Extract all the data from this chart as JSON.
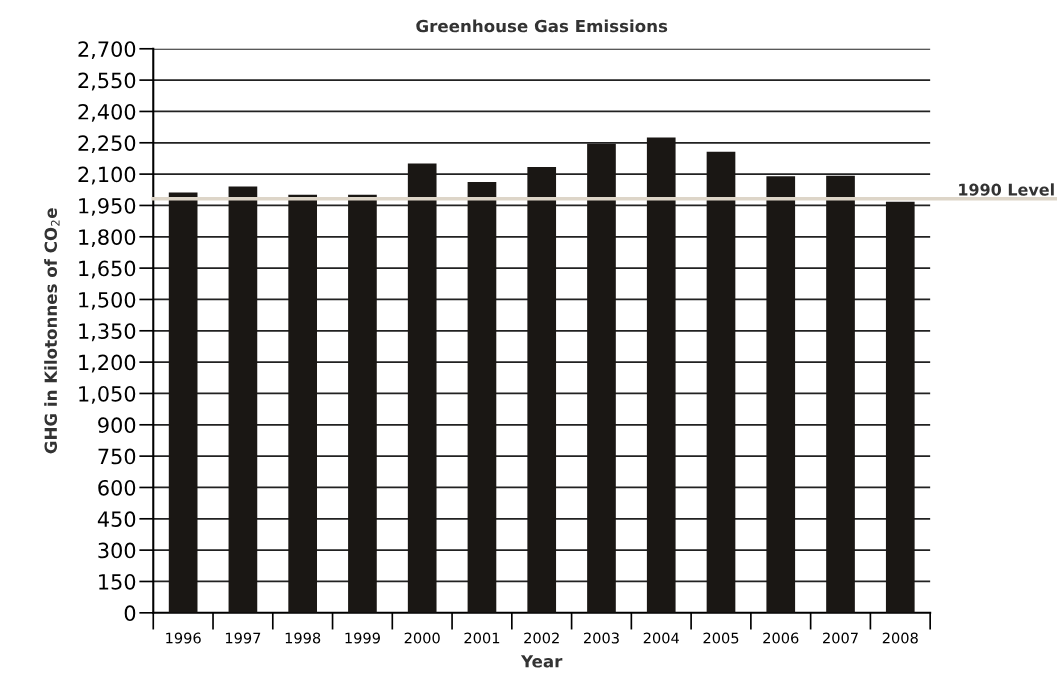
{
  "chart_data": {
    "type": "bar",
    "title": "Greenhouse Gas Emissions",
    "xlabel": "Year",
    "ylabel": "GHG in Kilotonnes of CO$_{2}$e",
    "categories": [
      "1996",
      "1997",
      "1998",
      "1999",
      "2000",
      "2001",
      "2002",
      "2003",
      "2004",
      "2005",
      "2006",
      "2007",
      "2008"
    ],
    "values": [
      2012,
      2041,
      2001,
      2001,
      2151,
      2062,
      2134,
      2245,
      2275,
      2207,
      2090,
      2092,
      1968
    ],
    "color": "#1a1714",
    "ylim": [
      0,
      2700
    ],
    "yticks": [
      {
        "value": 0,
        "label": "0"
      },
      {
        "value": 150,
        "label": "150"
      },
      {
        "value": 300,
        "label": "300"
      },
      {
        "value": 450,
        "label": "450"
      },
      {
        "value": 600,
        "label": "600"
      },
      {
        "value": 750,
        "label": "750"
      },
      {
        "value": 900,
        "label": "900"
      },
      {
        "value": 1050,
        "label": "1,050"
      },
      {
        "value": 1200,
        "label": "1,200"
      },
      {
        "value": 1350,
        "label": "1,350"
      },
      {
        "value": 1500,
        "label": "1,500"
      },
      {
        "value": 1650,
        "label": "1,650"
      },
      {
        "value": 1800,
        "label": "1,800"
      },
      {
        "value": 1950,
        "label": "1,950"
      },
      {
        "value": 2100,
        "label": "2,100"
      },
      {
        "value": 2250,
        "label": "2,250"
      },
      {
        "value": 2400,
        "label": "2,400"
      },
      {
        "value": 2550,
        "label": "2,550"
      },
      {
        "value": 2700,
        "label": "2,700"
      }
    ],
    "grid": "y",
    "ref_lines": [
      {
        "axis": "y",
        "value": 1982,
        "label": "1990 Level",
        "color": "#ddd5c8"
      }
    ]
  }
}
